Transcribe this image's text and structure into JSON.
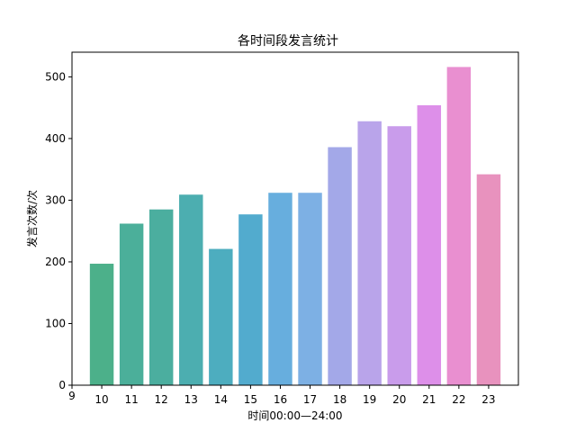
{
  "chart_data": {
    "type": "bar",
    "title": "各时间段发言统计",
    "xlabel": "时间00:00—24:00",
    "ylabel": "发言次数/次",
    "x_ticks": [
      "9",
      "10",
      "11",
      "12",
      "13",
      "14",
      "15",
      "16",
      "17",
      "18",
      "19",
      "20",
      "21",
      "22",
      "23"
    ],
    "categories": [
      "10",
      "11",
      "12",
      "13",
      "14",
      "15",
      "16",
      "17",
      "18",
      "19",
      "20",
      "21",
      "22",
      "23"
    ],
    "values": [
      197,
      262,
      285,
      309,
      221,
      277,
      312,
      312,
      386,
      428,
      420,
      454,
      516,
      342
    ],
    "colors": [
      "#4cb08a",
      "#4baf9a",
      "#4bae9f",
      "#4caeb0",
      "#4dadbf",
      "#52abce",
      "#67aede",
      "#7db0e4",
      "#a3a8e8",
      "#b9a4ea",
      "#c99ceb",
      "#dd8fe9",
      "#e98fd0",
      "#e892be"
    ],
    "y_ticks": [
      0,
      100,
      200,
      300,
      400,
      500
    ],
    "xlim": [
      9,
      24
    ],
    "ylim": [
      0,
      540
    ],
    "grid": false,
    "legend": "none"
  }
}
